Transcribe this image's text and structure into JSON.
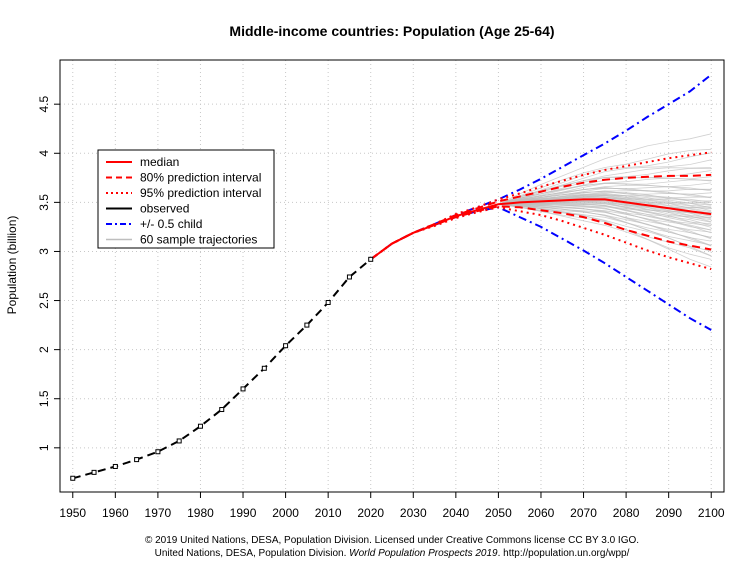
{
  "chart_data": {
    "type": "line",
    "title": "Middle-income countries: Population (Age 25-64)",
    "xlabel": "",
    "ylabel": "Population (billion)",
    "xlim": [
      1947,
      2103
    ],
    "ylim": [
      0.55,
      4.95
    ],
    "x_ticks": [
      "1950",
      "1960",
      "1970",
      "1980",
      "1990",
      "2000",
      "2010",
      "2020",
      "2030",
      "2040",
      "2050",
      "2060",
      "2070",
      "2080",
      "2090",
      "2100"
    ],
    "x_tick_values": [
      1950,
      1960,
      1970,
      1980,
      1990,
      2000,
      2010,
      2020,
      2030,
      2040,
      2050,
      2060,
      2070,
      2080,
      2090,
      2100
    ],
    "y_ticks": [
      "1",
      "1.5",
      "2",
      "2.5",
      "3",
      "3.5",
      "4",
      "4.5"
    ],
    "y_tick_values": [
      1,
      1.5,
      2,
      2.5,
      3,
      3.5,
      4,
      4.5
    ],
    "grid": true,
    "legend_position": "left",
    "legend": [
      {
        "label": "median",
        "color": "#ff0000",
        "style": "solid",
        "width": 2
      },
      {
        "label": "80% prediction interval",
        "color": "#ff0000",
        "style": "dashed",
        "width": 2
      },
      {
        "label": "95% prediction interval",
        "color": "#ff0000",
        "style": "dotted",
        "width": 2
      },
      {
        "label": "observed",
        "color": "#000000",
        "style": "solid",
        "width": 2
      },
      {
        "label": "+/- 0.5 child",
        "color": "#0000ff",
        "style": "dashdot",
        "width": 2
      },
      {
        "label": "60 sample trajectories",
        "color": "#bebebe",
        "style": "solid",
        "width": 1.5
      }
    ],
    "series": [
      {
        "name": "observed",
        "color": "#000000",
        "x": [
          1950,
          1955,
          1960,
          1965,
          1970,
          1975,
          1980,
          1985,
          1990,
          1995,
          2000,
          2005,
          2010,
          2015,
          2020
        ],
        "y": [
          0.69,
          0.75,
          0.81,
          0.88,
          0.96,
          1.07,
          1.22,
          1.39,
          1.6,
          1.81,
          2.04,
          2.25,
          2.48,
          2.74,
          2.92
        ]
      },
      {
        "name": "median",
        "color": "#ff0000",
        "x": [
          2020,
          2025,
          2030,
          2035,
          2040,
          2045,
          2050,
          2055,
          2060,
          2065,
          2070,
          2075,
          2080,
          2085,
          2090,
          2095,
          2100
        ],
        "y": [
          2.92,
          3.08,
          3.19,
          3.27,
          3.36,
          3.42,
          3.48,
          3.5,
          3.51,
          3.52,
          3.53,
          3.53,
          3.5,
          3.47,
          3.44,
          3.41,
          3.38
        ]
      },
      {
        "name": "80% upper",
        "color": "#ff0000",
        "x": [
          2020,
          2025,
          2030,
          2035,
          2040,
          2045,
          2050,
          2055,
          2060,
          2065,
          2070,
          2075,
          2080,
          2085,
          2090,
          2095,
          2100
        ],
        "y": [
          2.92,
          3.08,
          3.19,
          3.28,
          3.37,
          3.44,
          3.51,
          3.56,
          3.61,
          3.66,
          3.7,
          3.73,
          3.75,
          3.76,
          3.77,
          3.77,
          3.78
        ]
      },
      {
        "name": "80% lower",
        "color": "#ff0000",
        "x": [
          2020,
          2025,
          2030,
          2035,
          2040,
          2045,
          2050,
          2055,
          2060,
          2065,
          2070,
          2075,
          2080,
          2085,
          2090,
          2095,
          2100
        ],
        "y": [
          2.92,
          3.08,
          3.19,
          3.27,
          3.35,
          3.41,
          3.46,
          3.45,
          3.42,
          3.39,
          3.35,
          3.29,
          3.22,
          3.16,
          3.1,
          3.06,
          3.02
        ]
      },
      {
        "name": "95% upper",
        "color": "#ff0000",
        "x": [
          2020,
          2025,
          2030,
          2035,
          2040,
          2045,
          2050,
          2055,
          2060,
          2065,
          2070,
          2075,
          2080,
          2085,
          2090,
          2095,
          2100
        ],
        "y": [
          2.92,
          3.08,
          3.19,
          3.28,
          3.38,
          3.45,
          3.53,
          3.59,
          3.66,
          3.72,
          3.78,
          3.83,
          3.87,
          3.91,
          3.95,
          3.98,
          4.01
        ]
      },
      {
        "name": "95% lower",
        "color": "#ff0000",
        "x": [
          2020,
          2025,
          2030,
          2035,
          2040,
          2045,
          2050,
          2055,
          2060,
          2065,
          2070,
          2075,
          2080,
          2085,
          2090,
          2095,
          2100
        ],
        "y": [
          2.92,
          3.08,
          3.19,
          3.26,
          3.34,
          3.4,
          3.45,
          3.41,
          3.37,
          3.31,
          3.24,
          3.17,
          3.09,
          3.01,
          2.94,
          2.88,
          2.82
        ]
      },
      {
        "name": "+0.5 child",
        "color": "#0000ff",
        "x": [
          2020,
          2025,
          2030,
          2035,
          2040,
          2045,
          2050,
          2055,
          2060,
          2065,
          2070,
          2075,
          2080,
          2085,
          2090,
          2095,
          2100
        ],
        "y": [
          2.92,
          3.08,
          3.19,
          3.28,
          3.37,
          3.45,
          3.53,
          3.63,
          3.74,
          3.86,
          3.98,
          4.1,
          4.23,
          4.37,
          4.5,
          4.63,
          4.8
        ]
      },
      {
        "name": "-0.5 child",
        "color": "#0000ff",
        "x": [
          2020,
          2025,
          2030,
          2035,
          2040,
          2045,
          2050,
          2055,
          2060,
          2065,
          2070,
          2075,
          2080,
          2085,
          2090,
          2095,
          2100
        ],
        "y": [
          2.92,
          3.08,
          3.19,
          3.27,
          3.35,
          3.41,
          3.45,
          3.35,
          3.25,
          3.13,
          3.01,
          2.88,
          2.74,
          2.6,
          2.46,
          2.32,
          2.2
        ]
      }
    ],
    "sample_trajectories": {
      "count": 60,
      "start_year": 2050,
      "end_year": 2100,
      "end_values": [
        2.86,
        2.9,
        2.94,
        2.98,
        3.01,
        3.04,
        3.06,
        3.08,
        3.1,
        3.12,
        3.14,
        3.16,
        3.18,
        3.2,
        3.21,
        3.23,
        3.24,
        3.26,
        3.27,
        3.28,
        3.3,
        3.31,
        3.32,
        3.33,
        3.34,
        3.35,
        3.36,
        3.37,
        3.38,
        3.39,
        3.4,
        3.41,
        3.42,
        3.43,
        3.44,
        3.45,
        3.46,
        3.47,
        3.48,
        3.49,
        3.5,
        3.52,
        3.53,
        3.55,
        3.57,
        3.59,
        3.61,
        3.63,
        3.65,
        3.68,
        3.71,
        3.74,
        3.77,
        3.8,
        3.84,
        3.88,
        3.93,
        3.98,
        4.05,
        4.22
      ],
      "color": "#bebebe"
    }
  },
  "credit": {
    "line1": "© 2019 United Nations, DESA, Population Division. Licensed under Creative Commons license CC BY 3.0 IGO.",
    "line2_prefix": "United Nations, DESA, Population Division. ",
    "line2_italic": "World Population Prospects 2019",
    "line2_suffix": ". http://population.un.org/wpp/"
  }
}
